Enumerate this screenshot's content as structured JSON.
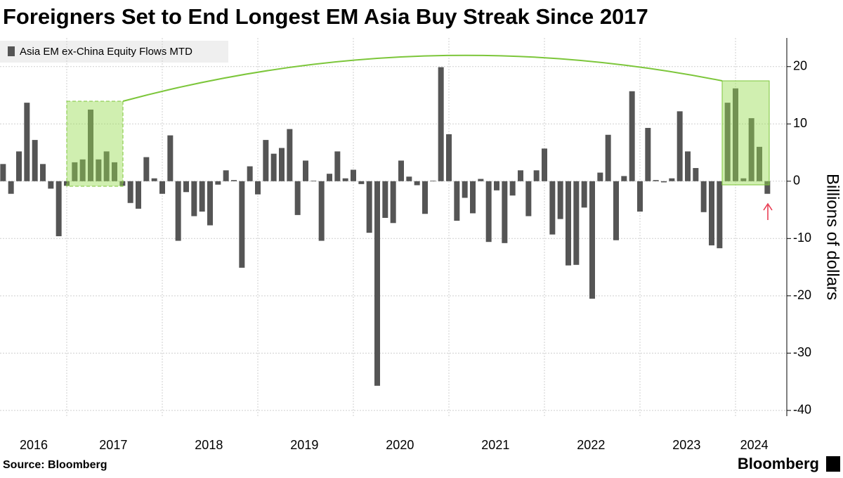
{
  "chart_data": {
    "type": "bar",
    "title": "Foreigners Set to End Longest EM Asia Buy Streak Since 2017",
    "y_label": "Billions of dollars",
    "source": "Source: Bloomberg",
    "brand": "Bloomberg",
    "categories": [
      "2016",
      null,
      null,
      null,
      null,
      null,
      null,
      null,
      "2017",
      null,
      null,
      null,
      null,
      null,
      null,
      null,
      null,
      null,
      null,
      null,
      "2018",
      null,
      null,
      null,
      null,
      null,
      null,
      null,
      null,
      null,
      null,
      null,
      "2019",
      null,
      null,
      null,
      null,
      null,
      null,
      null,
      null,
      null,
      null,
      null,
      "2020",
      null,
      null,
      null,
      null,
      null,
      null,
      null,
      null,
      null,
      null,
      null,
      "2021",
      null,
      null,
      null,
      null,
      null,
      null,
      null,
      null,
      null,
      null,
      null,
      "2022",
      null,
      null,
      null,
      null,
      null,
      null,
      null,
      null,
      null,
      null,
      null,
      "2023",
      null,
      null,
      null,
      null,
      null,
      null,
      null,
      null,
      null,
      null,
      null,
      "2024",
      null,
      null,
      null,
      null
    ],
    "series": [
      {
        "name": "Asia EM ex-China Equity Flows MTD",
        "color": "#555555",
        "values": [
          3.0,
          -2.2,
          5.2,
          13.7,
          7.2,
          3.0,
          -1.3,
          -9.6,
          -0.8,
          3.3,
          3.8,
          12.5,
          3.8,
          5.2,
          3.3,
          -0.8,
          -3.8,
          -4.8,
          4.2,
          0.5,
          -2.2,
          8.0,
          -10.4,
          -1.9,
          -6.1,
          -5.3,
          -7.7,
          -0.6,
          1.9,
          0.2,
          -15.1,
          2.6,
          -2.3,
          7.2,
          4.8,
          5.8,
          9.1,
          -5.9,
          3.6,
          0.1,
          -10.4,
          1.3,
          5.2,
          0.5,
          2.0,
          -0.5,
          -9.0,
          -35.7,
          -6.4,
          -7.3,
          3.6,
          0.8,
          -0.7,
          -5.7,
          0.1,
          19.9,
          8.2,
          -6.9,
          -2.9,
          -5.6,
          0.4,
          -10.6,
          -1.6,
          -10.8,
          -2.5,
          1.9,
          -6.1,
          1.9,
          5.7,
          -9.3,
          -6.6,
          -14.7,
          -14.6,
          -4.6,
          -20.5,
          1.5,
          8.1,
          -10.3,
          0.9,
          15.7,
          -5.3,
          9.3,
          0.2,
          -0.2,
          0.5,
          12.2,
          5.2,
          2.3,
          -5.4,
          -11.2,
          -11.7,
          13.7,
          16.2,
          0.5,
          11.0,
          6.0,
          -2.2
        ]
      }
    ],
    "ylim": [
      -41,
      25
    ],
    "yticks": [
      20,
      10,
      0,
      -10,
      -20,
      -30,
      -40
    ],
    "grid": true
  }
}
